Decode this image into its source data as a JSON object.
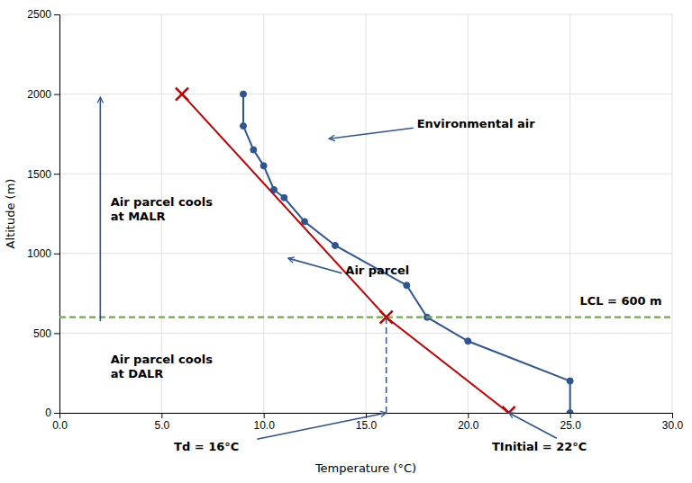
{
  "chart_data": {
    "type": "line",
    "xlabel": "Temperature (°C)",
    "ylabel": "Altitude (m)",
    "xlim": [
      0.0,
      30.0
    ],
    "ylim": [
      0,
      2500
    ],
    "xticks": [
      {
        "value": 0.0,
        "label": "0.0"
      },
      {
        "value": 5.0,
        "label": "5.0"
      },
      {
        "value": 10.0,
        "label": "10.0"
      },
      {
        "value": 15.0,
        "label": "15.0"
      },
      {
        "value": 20.0,
        "label": "20.0"
      },
      {
        "value": 25.0,
        "label": "25.0"
      },
      {
        "value": 30.0,
        "label": "30.0"
      }
    ],
    "yticks": [
      0,
      500,
      1000,
      1500,
      2000,
      2500
    ],
    "grid": true,
    "series": [
      {
        "color": "#2e5593",
        "marker": "o",
        "line_style": "solid",
        "x": [
          25.0,
          25.0,
          20.0,
          18.0,
          17.0,
          13.5,
          12.0,
          11.0,
          10.5,
          10.0,
          9.5,
          9.0,
          9.0
        ],
        "values": [
          0,
          200,
          450,
          600,
          800,
          1050,
          1200,
          1350,
          1400,
          1550,
          1650,
          1800,
          2000
        ]
      },
      {
        "color": "#c00000",
        "line_style": "solid",
        "x": [
          22.0,
          16.0
        ],
        "values": [
          0,
          600
        ]
      },
      {
        "color": "#c00000",
        "line_style": "solid",
        "x": [
          16.0,
          6.0
        ],
        "values": [
          600,
          2000
        ]
      },
      {
        "type": "hline",
        "color": "#70ad47",
        "line_style": "dashed",
        "values": [
          600
        ]
      },
      {
        "type": "scatter",
        "color": "#c00000",
        "marker": "x",
        "x": [
          6.0,
          16.0,
          22.0
        ],
        "values": [
          2000,
          600,
          0
        ]
      },
      {
        "color": "#2e5593",
        "line_style": "dashed",
        "x": [
          16.0,
          16.0
        ],
        "values": [
          0,
          600
        ]
      }
    ],
    "annotations": [
      {
        "text": "Environmental air",
        "x": 17.5,
        "y": 1790,
        "arrow_to": [
          13.2,
          1720
        ],
        "color": "#2e5593"
      },
      {
        "text": "Air parcel",
        "x": 14.0,
        "y": 870,
        "arrow_to": [
          11.2,
          970
        ],
        "color": "#2e5593"
      },
      {
        "text": "Air parcel cools\nat MALR",
        "x": 2.5,
        "y": 1280
      },
      {
        "text": "Air parcel cools\nat DALR",
        "x": 2.5,
        "y": 290
      },
      {
        "text": "LCL = 600 m",
        "x": 29.5,
        "y": 660
      },
      {
        "text": "Td = 16°C",
        "x": 7.2,
        "y": -170,
        "arrow_from": [
          9.5,
          -170
        ],
        "arrow_to": [
          16.0,
          0
        ],
        "color": "#2e5593"
      },
      {
        "text": "TInitial = 22°C",
        "x": 23.5,
        "y": -170,
        "arrow_from": [
          24.5,
          -170
        ],
        "arrow_to": [
          22.0,
          0
        ],
        "color": "#2e5593"
      },
      {
        "arrow_from": [
          2.0,
          575
        ],
        "arrow_to": [
          2.0,
          1980
        ],
        "color": "#2e5593"
      }
    ]
  }
}
